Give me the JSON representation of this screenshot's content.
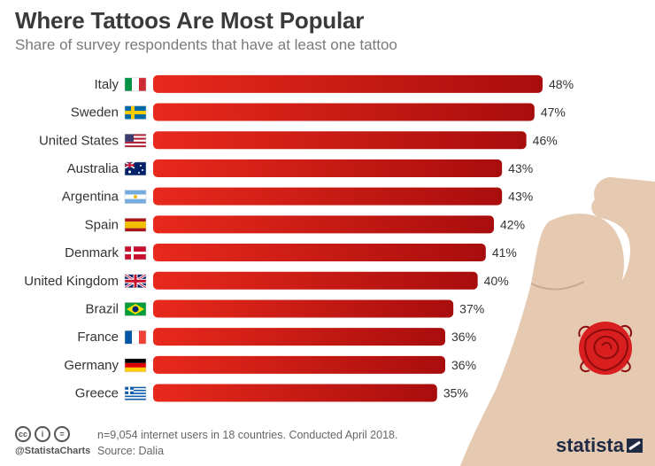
{
  "title": "Where Tattoos Are Most Popular",
  "subtitle": "Share of survey respondents that have at least one tattoo",
  "footer": {
    "note": "n=9,054 internet users in 18 countries. Conducted April 2018.",
    "source": "Source: Dalia",
    "handle": "@StatistaCharts",
    "logo": "statista",
    "cc_icons": [
      "creative-commons-icon",
      "attribution-icon",
      "no-derivatives-icon"
    ]
  },
  "colors": {
    "bar_light": "#e8291c",
    "bar_dark": "#a80d0d",
    "arm": "#e5c9b0",
    "rose": "#d81e1e"
  },
  "chart_data": {
    "type": "bar",
    "orientation": "horizontal",
    "title": "Where Tattoos Are Most Popular",
    "subtitle": "Share of survey respondents that have at least one tattoo",
    "categories": [
      "Italy",
      "Sweden",
      "United States",
      "Australia",
      "Argentina",
      "Spain",
      "Denmark",
      "United Kingdom",
      "Brazil",
      "France",
      "Germany",
      "Greece"
    ],
    "values": [
      48,
      47,
      46,
      43,
      43,
      42,
      41,
      40,
      37,
      36,
      36,
      35
    ],
    "value_labels": [
      "48%",
      "47%",
      "46%",
      "43%",
      "43%",
      "42%",
      "41%",
      "40%",
      "37%",
      "36%",
      "36%",
      "35%"
    ],
    "flags": [
      "it",
      "se",
      "us",
      "au",
      "ar",
      "es",
      "dk",
      "gb",
      "br",
      "fr",
      "de",
      "gr"
    ],
    "unit": "%",
    "xlim": [
      0,
      48
    ],
    "grid": false,
    "legend": "none"
  }
}
